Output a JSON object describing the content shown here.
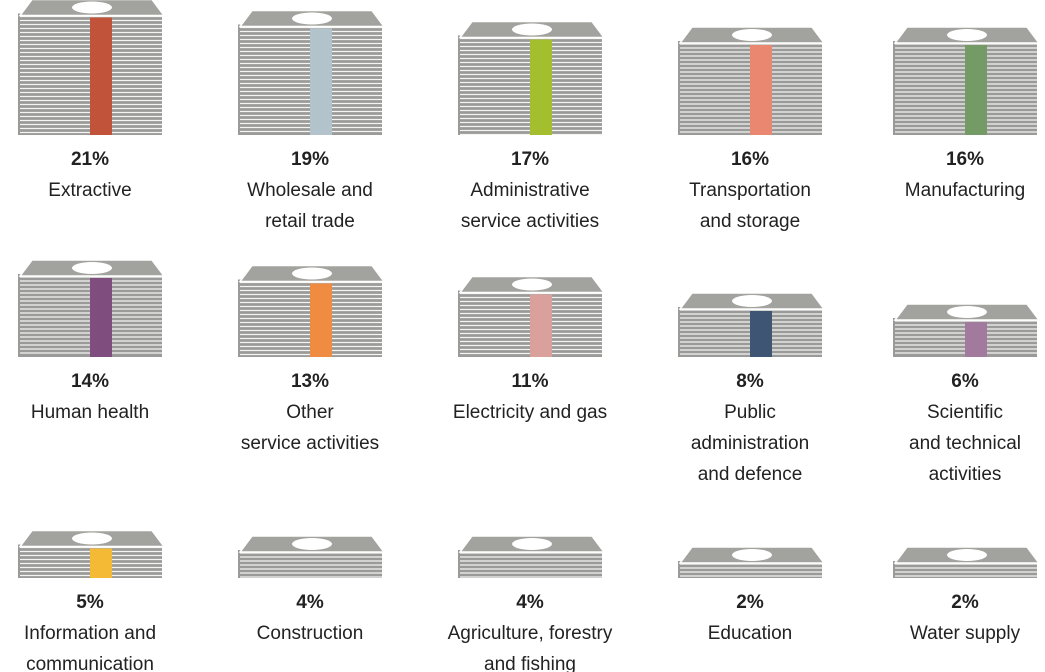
{
  "chart_data": {
    "type": "pictograph",
    "categories": [
      [
        "Extractive"
      ],
      [
        "Wholesale and",
        "retail trade"
      ],
      [
        "Administrative",
        "service activities"
      ],
      [
        "Transportation",
        "and storage"
      ],
      [
        "Manufacturing"
      ],
      [
        "Human health"
      ],
      [
        "Other",
        "service activities"
      ],
      [
        "Electricity and gas"
      ],
      [
        "Public",
        "administration",
        "and defence"
      ],
      [
        "Scientific",
        "and technical",
        "activities"
      ],
      [
        "Information and",
        "communication"
      ],
      [
        "Construction"
      ],
      [
        "Agriculture, forestry",
        "and fishing"
      ],
      [
        "Education"
      ],
      [
        "Water supply"
      ]
    ],
    "values": [
      21,
      19,
      17,
      16,
      16,
      14,
      13,
      11,
      8,
      6,
      5,
      4,
      4,
      2,
      2
    ],
    "value_labels": [
      "21%",
      "19%",
      "17%",
      "16%",
      "16%",
      "14%",
      "13%",
      "11%",
      "8%",
      "6%",
      "5%",
      "4%",
      "4%",
      "2%",
      "2%"
    ],
    "colors": [
      "#c0533a",
      "#b3c3cc",
      "#a3bf2e",
      "#e98770",
      "#749b66",
      "#7f4d7e",
      "#f08c41",
      "#d9a09c",
      "#3e5674",
      "#a27a9e",
      "#f4b935",
      null,
      null,
      null,
      null
    ]
  }
}
